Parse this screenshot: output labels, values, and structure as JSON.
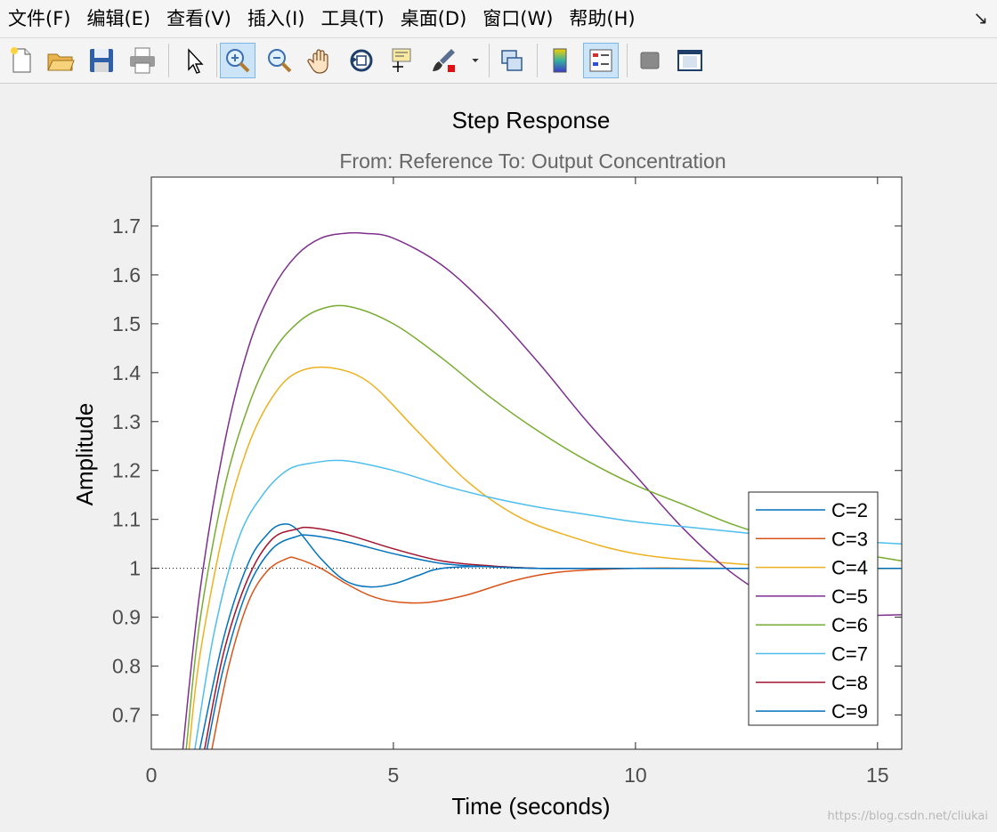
{
  "menu": [
    "文件(F)",
    "编辑(E)",
    "查看(V)",
    "插入(I)",
    "工具(T)",
    "桌面(D)",
    "窗口(W)",
    "帮助(H)"
  ],
  "menu_corner": "↘",
  "toolbar": {
    "items": [
      "new-figure-icon",
      "open-file-icon",
      "save-icon",
      "print-icon",
      "edit-plot-arrow-icon",
      "zoom-in-icon",
      "zoom-out-icon",
      "pan-hand-icon",
      "rotate-3d-icon",
      "data-cursor-icon",
      "brush-icon",
      "brush-dropdown-icon",
      "link-plot-icon",
      "colorbar-icon",
      "legend-icon",
      "hide-plot-tools-icon",
      "show-plot-tools-icon"
    ],
    "active": [
      "zoom-in-icon",
      "legend-icon"
    ]
  },
  "watermark": "https://blog.csdn.net/cliukai",
  "colors": {
    "c2": "#0072bd",
    "c3": "#d95319",
    "c4": "#edb120",
    "c5": "#7e2f8e",
    "c6": "#77ac30",
    "c7": "#4dbeee",
    "c8": "#a2142f",
    "c9": "#0072bd"
  },
  "chart_data": {
    "type": "line",
    "title": "Step Response",
    "subtitle": "From: Reference  To: Output Concentration",
    "xlabel": "Time (seconds)",
    "ylabel": "Amplitude",
    "xlim": [
      0,
      15.5
    ],
    "ylim": [
      0.63,
      1.8
    ],
    "xticks": [
      0,
      5,
      10,
      15
    ],
    "yticks": [
      0.7,
      0.8,
      0.9,
      1,
      1.1,
      1.2,
      1.3,
      1.4,
      1.5,
      1.6,
      1.7
    ],
    "ytick_labels": [
      "0.7",
      "0.8",
      "0.9",
      "1",
      "1.1",
      "1.2",
      "1.3",
      "1.4",
      "1.5",
      "1.6",
      "1.7"
    ],
    "xtick_labels": [
      "0",
      "5",
      "10",
      "15"
    ],
    "reference_line": 1,
    "grid": false,
    "legend_position": "bottom-right",
    "series": [
      {
        "name": "C=2",
        "x": [
          1.0,
          1.5,
          2.0,
          2.4,
          2.7,
          3.0,
          3.5,
          4.0,
          4.5,
          5.0,
          5.5,
          6.0,
          7.0,
          8.0,
          10.0,
          15.5
        ],
        "y": [
          0.63,
          0.86,
          1.01,
          1.07,
          1.09,
          1.08,
          1.02,
          0.975,
          0.962,
          0.968,
          0.985,
          1.0,
          1.004,
          1.0,
          1.0,
          1.0
        ]
      },
      {
        "name": "C=3",
        "x": [
          1.25,
          1.6,
          2.0,
          2.4,
          2.8,
          3.0,
          3.5,
          4.0,
          4.5,
          5.0,
          5.7,
          6.5,
          7.5,
          8.5,
          10.0,
          12.0,
          15.5
        ],
        "y": [
          0.63,
          0.8,
          0.93,
          0.995,
          1.02,
          1.02,
          1.0,
          0.97,
          0.945,
          0.932,
          0.93,
          0.945,
          0.975,
          0.993,
          1.0,
          1.0,
          1.0
        ]
      },
      {
        "name": "C=4",
        "x": [
          0.78,
          1.0,
          1.5,
          2.0,
          2.5,
          3.0,
          3.7,
          4.5,
          5.5,
          6.5,
          7.5,
          8.5,
          10.0,
          12.0,
          14.0,
          15.5
        ],
        "y": [
          0.63,
          0.82,
          1.08,
          1.25,
          1.35,
          1.4,
          1.41,
          1.38,
          1.28,
          1.18,
          1.11,
          1.07,
          1.03,
          1.01,
          1.0,
          1.0
        ]
      },
      {
        "name": "C=5",
        "x": [
          0.65,
          1.0,
          1.5,
          2.0,
          2.5,
          3.0,
          3.5,
          4.0,
          4.4,
          5.0,
          6.0,
          7.0,
          8.0,
          9.0,
          10.0,
          11.0,
          12.0,
          13.0,
          14.0,
          15.5
        ],
        "y": [
          0.63,
          0.95,
          1.25,
          1.45,
          1.57,
          1.64,
          1.675,
          1.685,
          1.685,
          1.675,
          1.62,
          1.53,
          1.42,
          1.3,
          1.19,
          1.08,
          0.99,
          0.93,
          0.905,
          0.905
        ]
      },
      {
        "name": "C=6",
        "x": [
          0.72,
          1.0,
          1.5,
          2.0,
          2.5,
          3.0,
          3.5,
          4.1,
          5.0,
          6.0,
          7.0,
          8.0,
          9.0,
          10.0,
          11.0,
          12.0,
          13.0,
          14.0,
          15.5
        ],
        "y": [
          0.63,
          0.89,
          1.16,
          1.33,
          1.44,
          1.5,
          1.53,
          1.535,
          1.5,
          1.43,
          1.35,
          1.28,
          1.22,
          1.17,
          1.13,
          1.09,
          1.06,
          1.04,
          1.015
        ]
      },
      {
        "name": "C=7",
        "x": [
          0.9,
          1.3,
          1.8,
          2.3,
          2.8,
          3.3,
          4.0,
          5.0,
          6.0,
          7.0,
          8.0,
          9.0,
          10.0,
          11.0,
          12.0,
          13.0,
          14.0,
          15.5
        ],
        "y": [
          0.63,
          0.87,
          1.06,
          1.15,
          1.2,
          1.215,
          1.22,
          1.2,
          1.17,
          1.145,
          1.125,
          1.11,
          1.095,
          1.085,
          1.075,
          1.065,
          1.058,
          1.05
        ]
      },
      {
        "name": "C=8",
        "x": [
          1.1,
          1.5,
          2.0,
          2.5,
          3.0,
          3.3,
          4.0,
          5.0,
          6.0,
          7.0,
          8.0,
          10.0,
          15.5
        ],
        "y": [
          0.63,
          0.83,
          0.98,
          1.06,
          1.08,
          1.083,
          1.07,
          1.04,
          1.015,
          1.005,
          1.0,
          1.0,
          1.0
        ]
      },
      {
        "name": "C=9",
        "x": [
          1.15,
          1.5,
          2.0,
          2.5,
          3.0,
          3.3,
          4.0,
          5.0,
          6.0,
          7.0,
          8.0,
          10.0,
          15.5
        ],
        "y": [
          0.63,
          0.8,
          0.96,
          1.04,
          1.065,
          1.067,
          1.055,
          1.03,
          1.01,
          1.003,
          1.0,
          1.0,
          1.0
        ]
      }
    ]
  }
}
